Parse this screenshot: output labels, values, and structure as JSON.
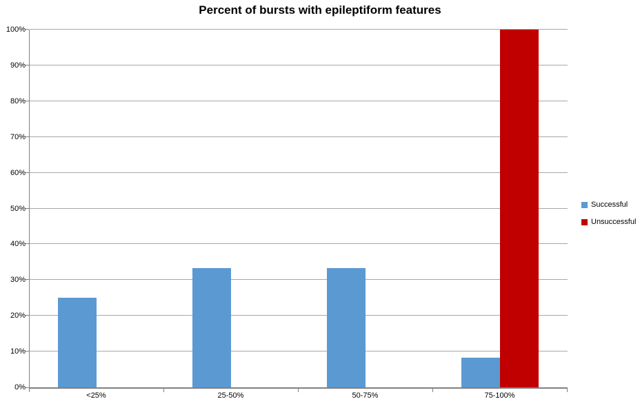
{
  "chart_data": {
    "type": "bar",
    "title": "Percent of bursts with epileptiform features",
    "categories": [
      "<25%",
      "25-50%",
      "50-75%",
      "75-100%"
    ],
    "series": [
      {
        "name": "Successful",
        "color": "#5B99D3",
        "values": [
          25,
          33.3,
          33.3,
          8.3
        ]
      },
      {
        "name": "Unsuccessful",
        "color": "#C00000",
        "values": [
          0,
          0,
          0,
          100
        ]
      }
    ],
    "xlabel": "",
    "ylabel": "",
    "ylim": [
      0,
      100
    ],
    "ytick_step": 10,
    "ytick_labels": [
      "0%",
      "10%",
      "20%",
      "30%",
      "40%",
      "50%",
      "60%",
      "70%",
      "80%",
      "90%",
      "100%"
    ],
    "grid": true,
    "legend_position": "right",
    "colors": {
      "gridline": "#A6A6A6",
      "axis": "#808080",
      "title_text": "#000000"
    }
  }
}
